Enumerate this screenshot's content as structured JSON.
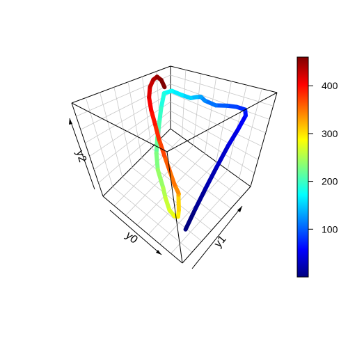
{
  "chart_data": {
    "type": "line",
    "title": "",
    "axes": {
      "x": {
        "label": "y0",
        "ticks_printed": false
      },
      "y": {
        "label": "y1",
        "ticks_printed": false
      },
      "z": {
        "label": "y2",
        "ticks_printed": false
      }
    },
    "colorbar": {
      "palette": "jet",
      "range": [
        0,
        460
      ],
      "ticks": [
        100,
        200,
        300,
        400
      ],
      "tick_labels": [
        "100",
        "200",
        "300",
        "400"
      ],
      "stops": [
        "#00007F",
        "#0000FF",
        "#007FFF",
        "#00FFFF",
        "#7FFF7F",
        "#FFFF00",
        "#FF7F00",
        "#FF0000",
        "#7F0000"
      ]
    },
    "series": [
      {
        "color_by": "index",
        "description_of_path": "trajectory colored by index from blue to dark red",
        "x": [
          0.88,
          0.92,
          0.95,
          0.97,
          0.98,
          0.97,
          0.95,
          0.9,
          0.8,
          0.7,
          0.6,
          0.5,
          0.45,
          0.4,
          0.35,
          0.28,
          0.2,
          0.14,
          0.12,
          0.13,
          0.15,
          0.2,
          0.3,
          0.45,
          0.55,
          0.65,
          0.75,
          0.82,
          0.86,
          0.83,
          0.78,
          0.72,
          0.6,
          0.48,
          0.38,
          0.28,
          0.2,
          0.12,
          0.06,
          0.03,
          0.02,
          0.03,
          0.05,
          0.07
        ],
        "y": [
          0.2,
          0.3,
          0.4,
          0.5,
          0.6,
          0.7,
          0.78,
          0.82,
          0.84,
          0.85,
          0.84,
          0.83,
          0.84,
          0.85,
          0.84,
          0.82,
          0.8,
          0.78,
          0.76,
          0.72,
          0.66,
          0.58,
          0.48,
          0.38,
          0.3,
          0.24,
          0.2,
          0.18,
          0.16,
          0.2,
          0.25,
          0.3,
          0.38,
          0.45,
          0.5,
          0.55,
          0.6,
          0.65,
          0.7,
          0.75,
          0.8,
          0.83,
          0.85,
          0.86
        ],
        "z": [
          0.1,
          0.25,
          0.4,
          0.55,
          0.7,
          0.8,
          0.88,
          0.9,
          0.88,
          0.85,
          0.82,
          0.84,
          0.86,
          0.83,
          0.8,
          0.82,
          0.85,
          0.8,
          0.6,
          0.45,
          0.3,
          0.2,
          0.15,
          0.12,
          0.14,
          0.12,
          0.15,
          0.2,
          0.3,
          0.4,
          0.35,
          0.3,
          0.25,
          0.28,
          0.35,
          0.45,
          0.55,
          0.65,
          0.75,
          0.85,
          0.92,
          0.95,
          0.9,
          0.8
        ]
      }
    ]
  }
}
